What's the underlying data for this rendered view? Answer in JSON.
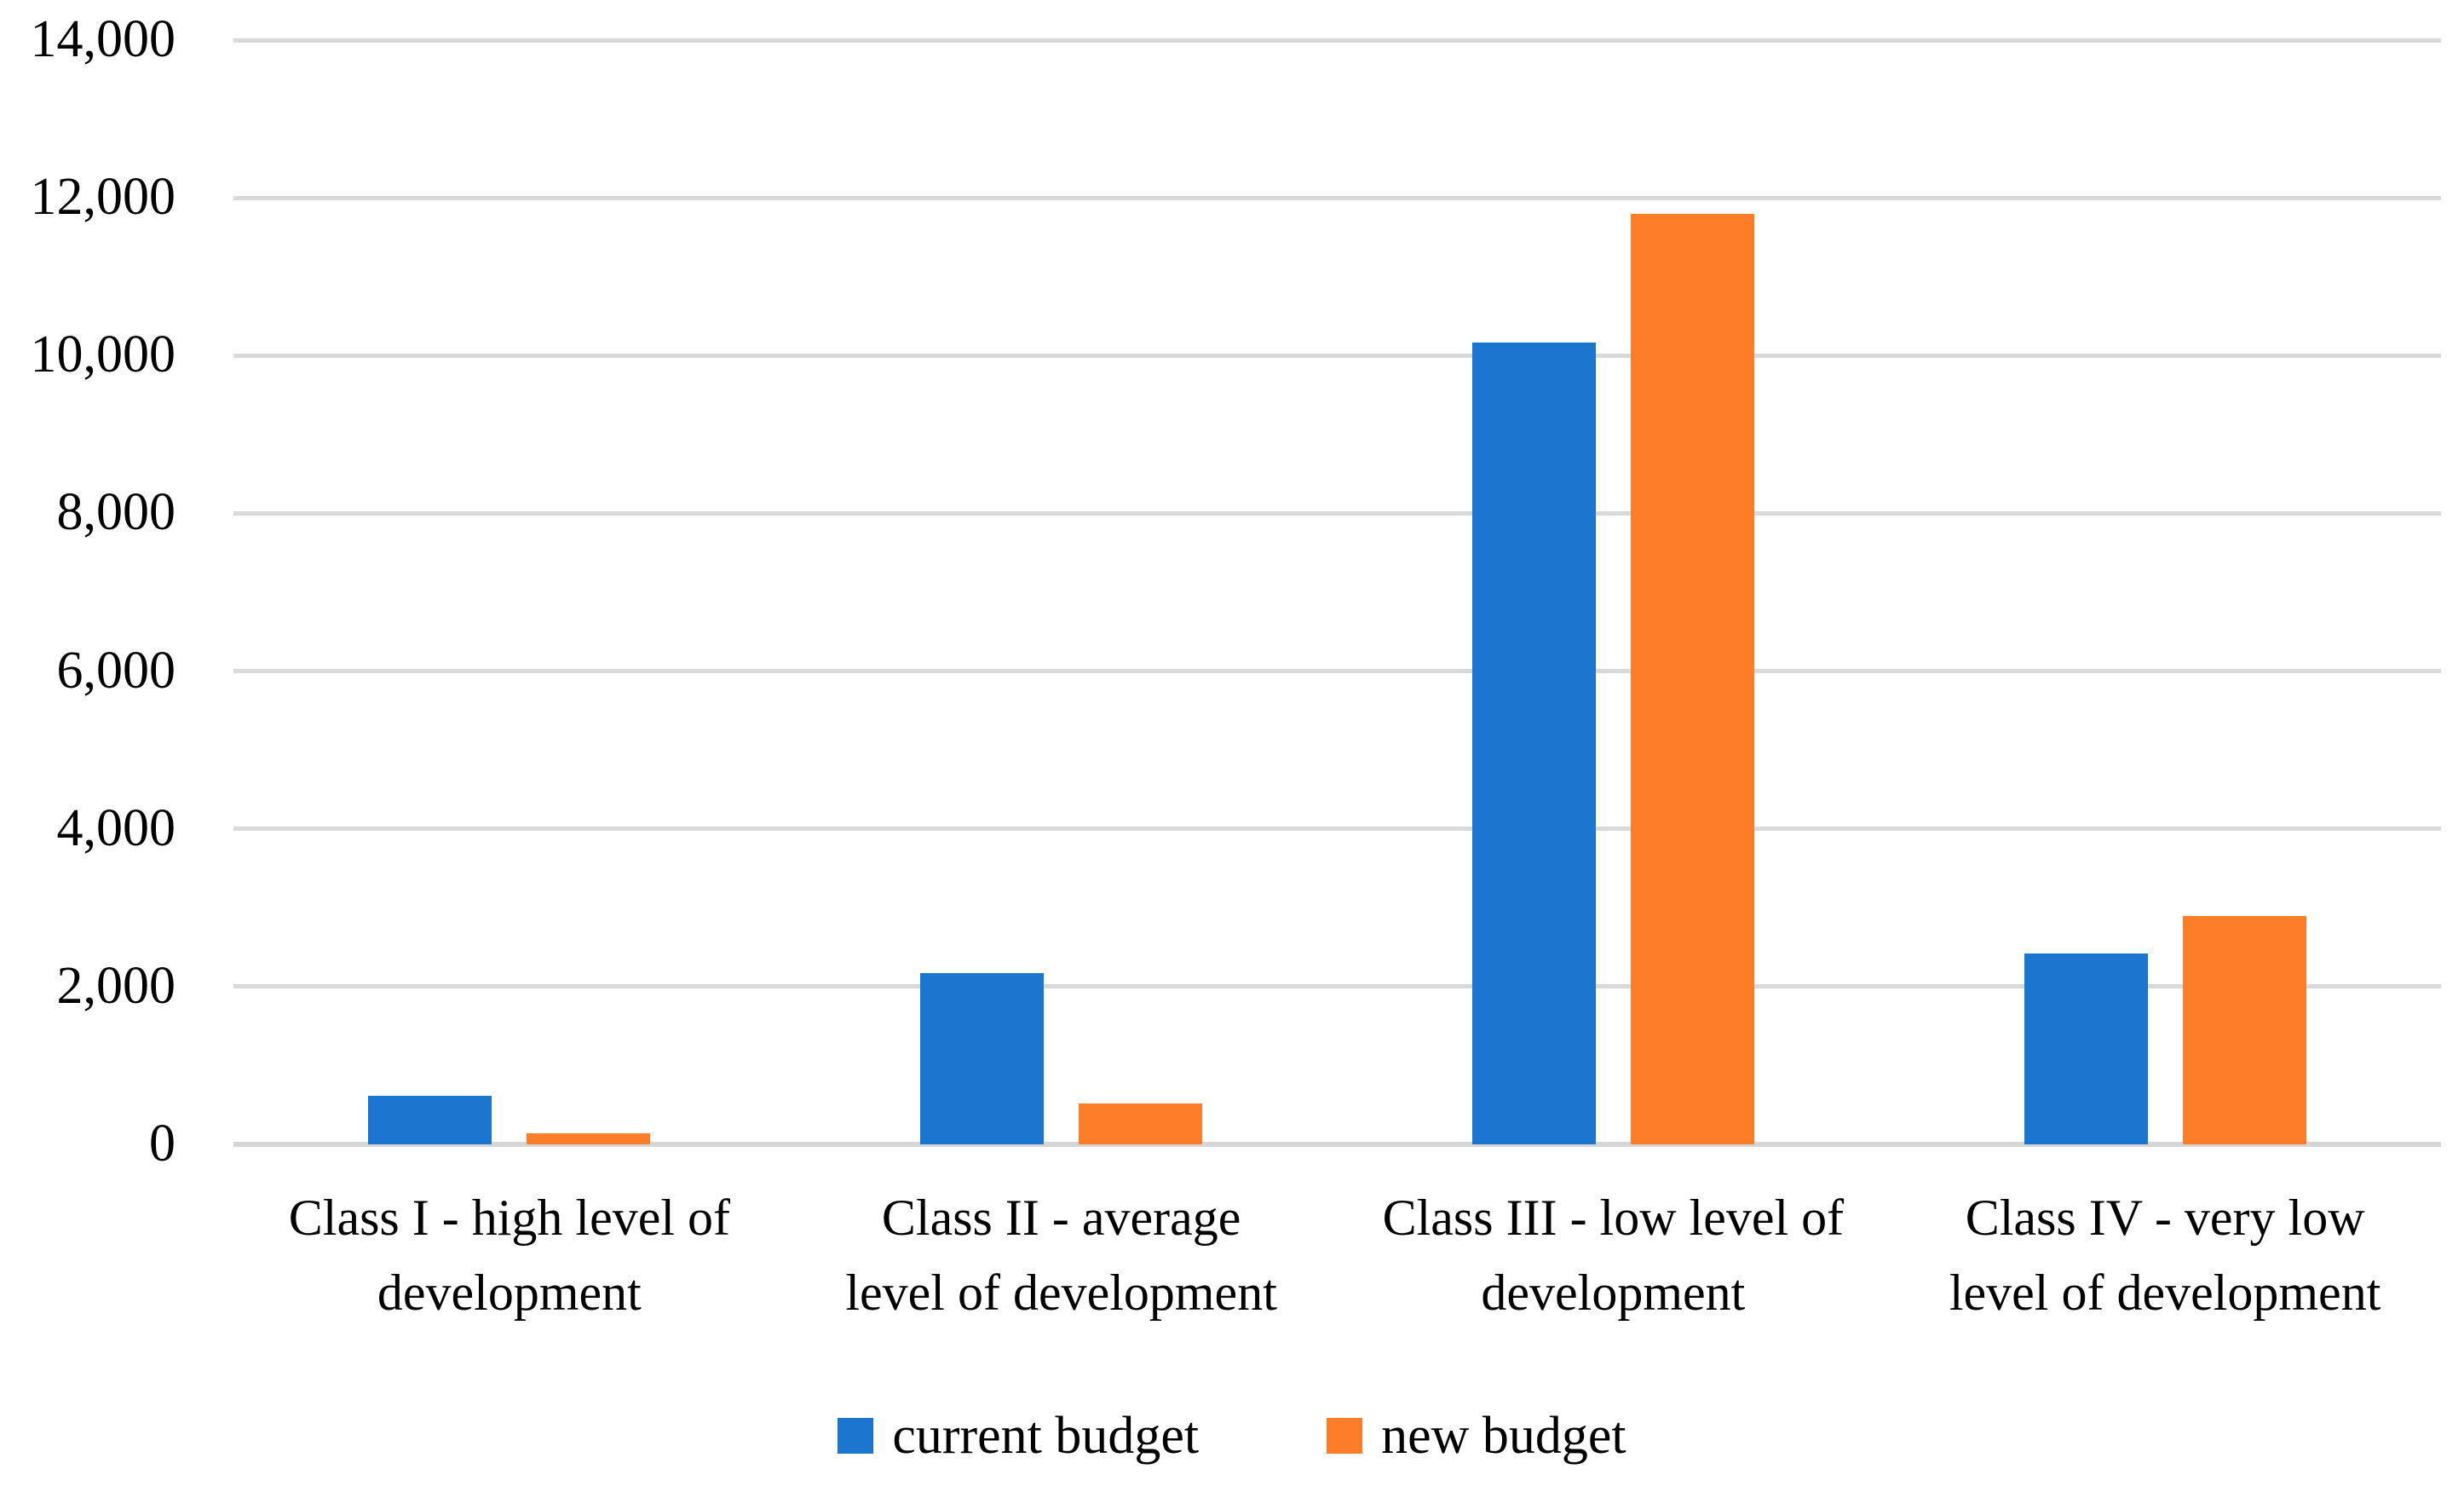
{
  "chart_data": {
    "type": "bar",
    "title": "",
    "categories": [
      "Class I - high level of development",
      "Class II - average level of development",
      "Class III - low level of development",
      "Class IV - very low level of development"
    ],
    "category_lines": [
      [
        "Class I - high level of",
        "development"
      ],
      [
        "Class II - average",
        "level of development"
      ],
      [
        "Class III - low level of",
        "development"
      ],
      [
        "Class IV - very low",
        "level of development"
      ]
    ],
    "series": [
      {
        "name": "current budget",
        "color": "#1B74CE",
        "values": [
          620,
          2170,
          10170,
          2420
        ]
      },
      {
        "name": "new budget",
        "color": "#FD7D28",
        "values": [
          145,
          520,
          11800,
          2900
        ]
      }
    ],
    "ylim": [
      0,
      14000
    ],
    "yticks": [
      {
        "value": 0,
        "label": "0"
      },
      {
        "value": 2000,
        "label": "2,000"
      },
      {
        "value": 4000,
        "label": "4,000"
      },
      {
        "value": 6000,
        "label": "6,000"
      },
      {
        "value": 8000,
        "label": "8,000"
      },
      {
        "value": 10000,
        "label": "10,000"
      },
      {
        "value": 12000,
        "label": "12,000"
      },
      {
        "value": 14000,
        "label": "14,000"
      }
    ],
    "grid": true,
    "gridline_color": "#D9D9D9",
    "axis_line_color": "#D6D6D6",
    "text_color": "#000000",
    "background": "#FFFFFF",
    "legend_position": "bottom-center",
    "legend": [
      "current budget",
      "new budget"
    ]
  }
}
